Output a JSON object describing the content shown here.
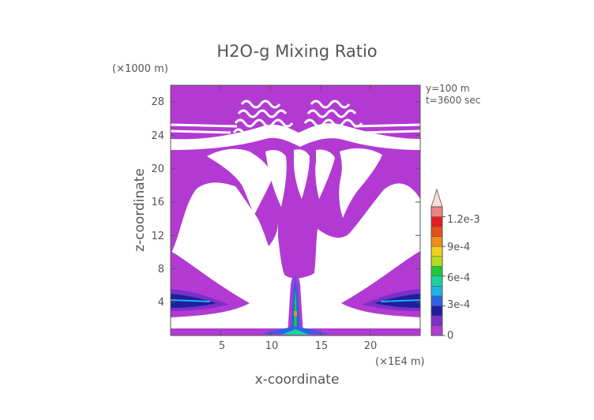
{
  "chart_data": {
    "type": "heatmap",
    "title": "H2O-g Mixing Ratio",
    "annotations": [
      "y=100 m",
      "t=3600 sec"
    ],
    "x_axis": {
      "label": "x-coordinate",
      "unit": "(×1E4 m)",
      "ticks": [
        5,
        10,
        15,
        20
      ],
      "range": [
        0,
        25
      ]
    },
    "y_axis": {
      "label": "z-coordinate",
      "unit": "(×1000 m)",
      "ticks": [
        4,
        8,
        12,
        16,
        20,
        24,
        28
      ],
      "range": [
        0,
        30
      ]
    },
    "colorbar": {
      "tick_labels": [
        "0",
        "3e-4",
        "6e-4",
        "9e-4",
        "1.2e-3"
      ],
      "range": [
        0,
        0.0013
      ],
      "levels": [
        {
          "lo": 0.0,
          "color": "#b23ad2"
        },
        {
          "lo": 0.0001,
          "color": "#7d2fc8"
        },
        {
          "lo": 0.0002,
          "color": "#1e1ea0"
        },
        {
          "lo": 0.0003,
          "color": "#2864e6"
        },
        {
          "lo": 0.0004,
          "color": "#1eb4e6"
        },
        {
          "lo": 0.0005,
          "color": "#1ed2a0"
        },
        {
          "lo": 0.0006,
          "color": "#1ec83c"
        },
        {
          "lo": 0.0007,
          "color": "#b4dc1e"
        },
        {
          "lo": 0.0008,
          "color": "#f0d21e"
        },
        {
          "lo": 0.0009,
          "color": "#f08c1e"
        },
        {
          "lo": 0.001,
          "color": "#e6501e"
        },
        {
          "lo": 0.0011,
          "color": "#e61e1e"
        },
        {
          "lo": 0.0012,
          "color": "#f08282"
        },
        {
          "lo": 0.0013,
          "color": "#f8dcdc"
        }
      ]
    },
    "field_color": "#b23ad2",
    "background": "#ffffff"
  }
}
